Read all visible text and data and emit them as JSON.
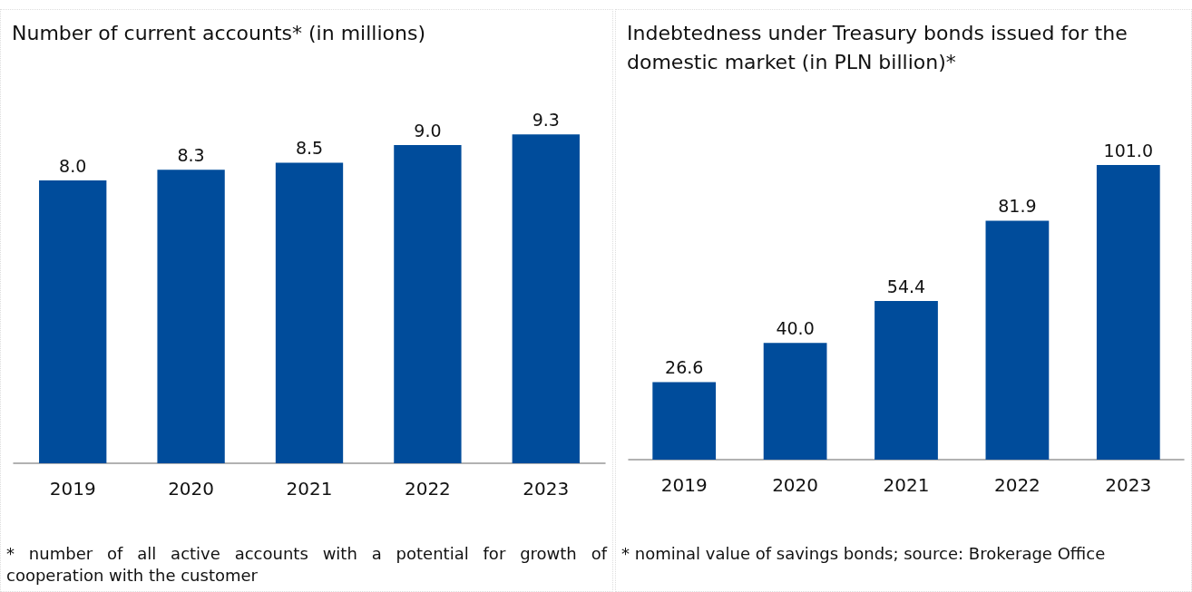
{
  "chart_data": [
    {
      "type": "bar",
      "title": "Number of current accounts* (in millions)",
      "categories": [
        "2019",
        "2020",
        "2021",
        "2022",
        "2023"
      ],
      "values": [
        8.0,
        8.3,
        8.5,
        9.0,
        9.3
      ],
      "color": "#004c9b",
      "value_labels": [
        "8.0",
        "8.3",
        "8.5",
        "9.0",
        "9.3"
      ],
      "annotations": [
        "* number of all active accounts with a potential for growth of cooperation with the customer"
      ]
    },
    {
      "type": "bar",
      "title": "Indebtedness under Treasury bonds issued for the domestic market (in PLN billion)*",
      "categories": [
        "2019",
        "2020",
        "2021",
        "2022",
        "2023"
      ],
      "values": [
        26.6,
        40.0,
        54.4,
        81.9,
        101.0
      ],
      "color": "#004c9b",
      "value_labels": [
        "26.6",
        "40.0",
        "54.4",
        "81.9",
        "101.0"
      ],
      "annotations": [
        "* nominal value of savings bonds; source: Brokerage Office"
      ]
    }
  ]
}
